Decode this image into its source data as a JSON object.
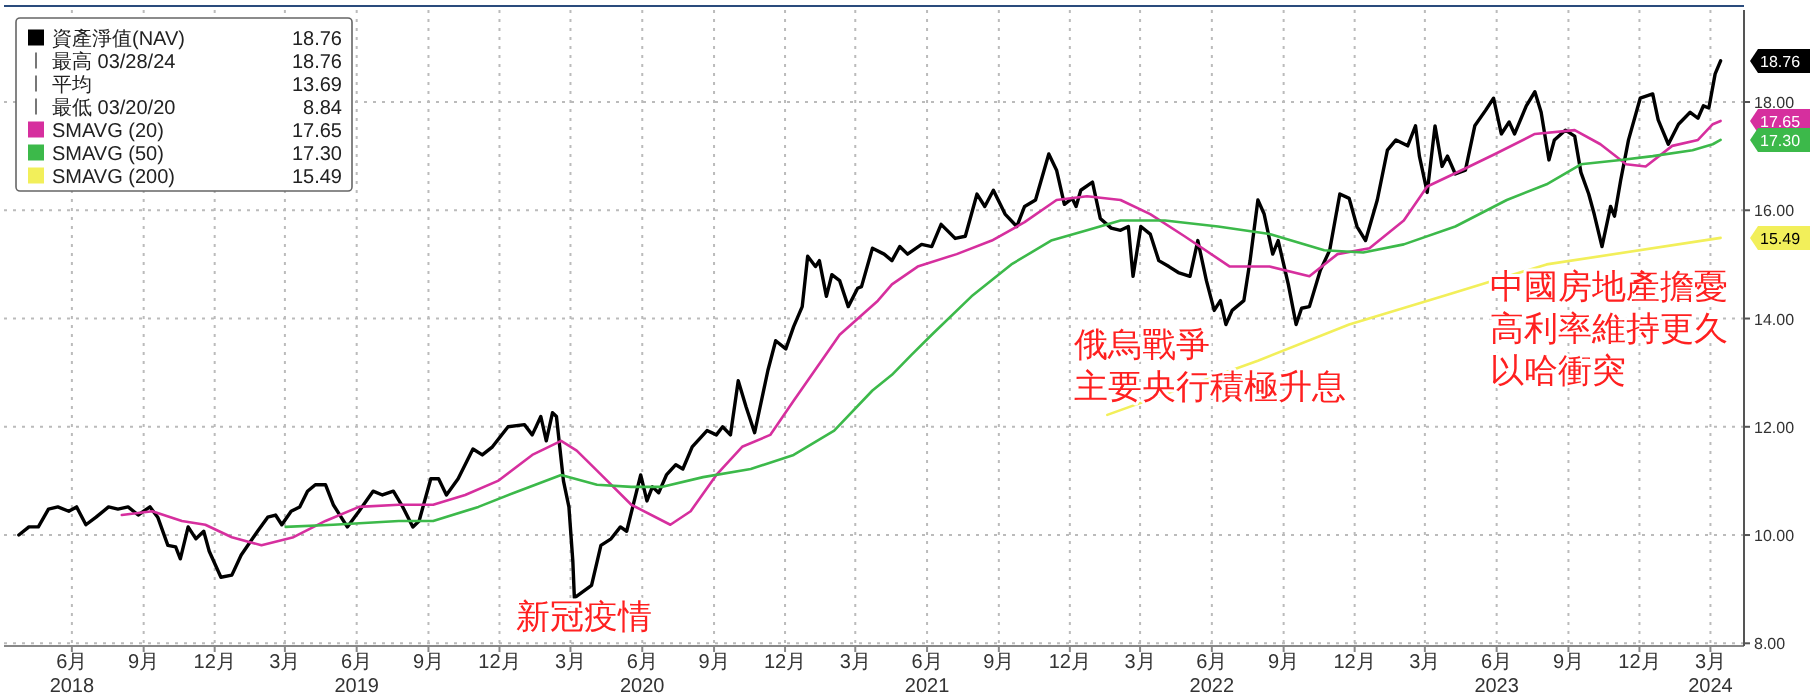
{
  "chart_data": {
    "type": "line",
    "xlim": [
      "2018-03-20",
      "2024-04-27"
    ],
    "ylim": [
      7.95,
      19.7
    ],
    "xticks": [
      {
        "value": "2018-06-15",
        "label": "6月\n2018"
      },
      {
        "value": "2018-09-15",
        "label": "9月"
      },
      {
        "value": "2018-12-15",
        "label": "12月"
      },
      {
        "value": "2019-03-15",
        "label": "3月"
      },
      {
        "value": "2019-06-15",
        "label": "6月\n2019"
      },
      {
        "value": "2019-09-15",
        "label": "9月"
      },
      {
        "value": "2019-12-15",
        "label": "12月"
      },
      {
        "value": "2020-03-15",
        "label": "3月"
      },
      {
        "value": "2020-06-15",
        "label": "6月\n2020"
      },
      {
        "value": "2020-09-15",
        "label": "9月"
      },
      {
        "value": "2020-12-15",
        "label": "12月"
      },
      {
        "value": "2021-03-15",
        "label": "3月"
      },
      {
        "value": "2021-06-15",
        "label": "6月\n2021"
      },
      {
        "value": "2021-09-15",
        "label": "9月"
      },
      {
        "value": "2021-12-15",
        "label": "12月"
      },
      {
        "value": "2022-03-15",
        "label": "3月"
      },
      {
        "value": "2022-06-15",
        "label": "6月\n2022"
      },
      {
        "value": "2022-09-15",
        "label": "9月"
      },
      {
        "value": "2022-12-15",
        "label": "12月"
      },
      {
        "value": "2023-03-15",
        "label": "3月"
      },
      {
        "value": "2023-06-15",
        "label": "6月\n2023"
      },
      {
        "value": "2023-09-15",
        "label": "9月"
      },
      {
        "value": "2023-12-15",
        "label": "12月"
      },
      {
        "value": "2024-03-15",
        "label": "3月\n2024"
      }
    ],
    "yticks": [
      {
        "value": 8,
        "label": "8.00"
      },
      {
        "value": 10,
        "label": "10.00"
      },
      {
        "value": 12,
        "label": "12.00"
      },
      {
        "value": 14,
        "label": "14.00"
      },
      {
        "value": 16,
        "label": "16.00"
      },
      {
        "value": 18,
        "label": "18.00"
      }
    ],
    "grid": true,
    "legend": "top left",
    "line_style": "solid",
    "annotations": [
      "最高 03/28/24  18.76",
      "平均  13.69",
      "最低 03/20/20  8.84",
      "新冠疫情",
      "俄烏戰爭",
      "主要央行積極升息",
      "中國房地產擔憂",
      "高利率維持更久",
      "以哈衝突",
      {
        "text": "18.76",
        "x": "2024-03-28",
        "y": 18.76
      },
      {
        "text": "17.65",
        "x": "2024-03-28",
        "y": 17.65
      },
      {
        "text": "17.30",
        "x": "2024-03-28",
        "y": 17.3
      },
      {
        "text": "15.49",
        "x": "2024-03-28",
        "y": 15.49
      }
    ],
    "series": [
      {
        "name": "資產淨值(NAV)",
        "color": "#000000",
        "x": [
          "2018-04-08",
          "2018-04-21",
          "2018-05-03",
          "2018-05-16",
          "2018-05-28",
          "2018-06-11",
          "2018-06-21",
          "2018-07-03",
          "2018-07-16",
          "2018-08-01",
          "2018-08-13",
          "2018-08-26",
          "2018-09-08",
          "2018-09-23",
          "2018-10-03",
          "2018-10-16",
          "2018-10-26",
          "2018-11-01",
          "2018-11-11",
          "2018-11-21",
          "2018-12-01",
          "2018-12-08",
          "2018-12-23",
          "2019-01-06",
          "2019-01-18",
          "2019-02-08",
          "2019-02-21",
          "2019-03-03",
          "2019-03-11",
          "2019-03-23",
          "2019-04-03",
          "2019-04-13",
          "2019-04-23",
          "2019-05-06",
          "2019-05-16",
          "2019-06-03",
          "2019-06-18",
          "2019-07-06",
          "2019-07-18",
          "2019-08-01",
          "2019-08-13",
          "2019-08-26",
          "2019-09-03",
          "2019-09-18",
          "2019-09-28",
          "2019-10-08",
          "2019-10-23",
          "2019-11-11",
          "2019-11-23",
          "2019-12-06",
          "2019-12-26",
          "2020-01-16",
          "2020-01-26",
          "2020-02-06",
          "2020-02-13",
          "2020-02-21",
          "2020-02-26",
          "2020-03-06",
          "2020-03-13",
          "2020-03-18",
          "2020-03-20",
          "2020-04-11",
          "2020-04-23",
          "2020-05-06",
          "2020-05-18",
          "2020-05-26",
          "2020-06-13",
          "2020-06-21",
          "2020-06-28",
          "2020-07-06",
          "2020-07-16",
          "2020-07-28",
          "2020-08-06",
          "2020-08-18",
          "2020-09-06",
          "2020-09-18",
          "2020-09-26",
          "2020-10-06",
          "2020-10-16",
          "2020-10-26",
          "2020-11-06",
          "2020-11-23",
          "2020-12-03",
          "2020-12-16",
          "2020-12-26",
          "2021-01-06",
          "2021-01-13",
          "2021-01-23",
          "2021-01-28",
          "2021-02-06",
          "2021-02-13",
          "2021-02-23",
          "2021-03-06",
          "2021-03-18",
          "2021-03-23",
          "2021-04-06",
          "2021-04-21",
          "2021-05-01",
          "2021-05-11",
          "2021-05-21",
          "2021-06-08",
          "2021-06-21",
          "2021-07-03",
          "2021-07-21",
          "2021-08-03",
          "2021-08-18",
          "2021-08-28",
          "2021-09-08",
          "2021-09-23",
          "2021-10-08",
          "2021-10-18",
          "2021-11-01",
          "2021-11-18",
          "2021-11-28",
          "2021-12-08",
          "2021-12-18",
          "2021-12-23",
          "2021-12-29",
          "2022-01-13",
          "2022-01-23",
          "2022-02-06",
          "2022-02-18",
          "2022-02-28",
          "2022-03-06",
          "2022-03-16",
          "2022-03-28",
          "2022-04-08",
          "2022-04-21",
          "2022-05-03",
          "2022-05-18",
          "2022-05-28",
          "2022-06-08",
          "2022-06-18",
          "2022-06-26",
          "2022-07-03",
          "2022-07-11",
          "2022-07-26",
          "2022-08-03",
          "2022-08-13",
          "2022-08-21",
          "2022-09-01",
          "2022-09-08",
          "2022-09-21",
          "2022-10-01",
          "2022-10-08",
          "2022-10-18",
          "2022-11-01",
          "2022-11-13",
          "2022-11-26",
          "2022-12-08",
          "2022-12-18",
          "2022-12-29",
          "2023-01-13",
          "2023-01-26",
          "2023-02-06",
          "2023-02-21",
          "2023-03-03",
          "2023-03-08",
          "2023-03-18",
          "2023-03-28",
          "2023-04-06",
          "2023-04-13",
          "2023-04-23",
          "2023-05-06",
          "2023-05-18",
          "2023-06-01",
          "2023-06-11",
          "2023-06-21",
          "2023-07-01",
          "2023-07-08",
          "2023-07-23",
          "2023-08-03",
          "2023-08-11",
          "2023-08-21",
          "2023-08-28",
          "2023-09-11",
          "2023-09-23",
          "2023-10-01",
          "2023-10-11",
          "2023-10-18",
          "2023-10-28",
          "2023-11-08",
          "2023-11-13",
          "2023-11-21",
          "2023-12-01",
          "2023-12-16",
          "2024-01-01",
          "2024-01-08",
          "2024-01-21",
          "2024-02-03",
          "2024-02-18",
          "2024-02-28",
          "2024-03-06",
          "2024-03-13",
          "2024-03-21",
          "2024-03-28"
        ],
        "values": [
          10.0,
          10.15,
          10.15,
          10.48,
          10.52,
          10.44,
          10.52,
          10.19,
          10.33,
          10.52,
          10.48,
          10.52,
          10.37,
          10.52,
          10.33,
          9.81,
          9.78,
          9.56,
          10.15,
          9.93,
          10.07,
          9.7,
          9.22,
          9.26,
          9.63,
          10.07,
          10.33,
          10.37,
          10.19,
          10.44,
          10.52,
          10.81,
          10.93,
          10.93,
          10.56,
          10.15,
          10.44,
          10.81,
          10.74,
          10.81,
          10.52,
          10.15,
          10.26,
          11.04,
          11.04,
          10.74,
          11.04,
          11.59,
          11.48,
          11.63,
          12.0,
          12.04,
          11.85,
          12.19,
          11.74,
          12.26,
          12.19,
          11.0,
          10.52,
          9.52,
          8.84,
          9.07,
          9.81,
          9.93,
          10.15,
          10.07,
          11.11,
          10.63,
          10.89,
          10.78,
          11.11,
          11.3,
          11.22,
          11.63,
          11.93,
          11.85,
          12.0,
          11.85,
          12.85,
          12.37,
          11.89,
          13.04,
          13.59,
          13.44,
          13.85,
          14.22,
          15.15,
          14.96,
          15.07,
          14.41,
          14.81,
          14.7,
          14.22,
          14.56,
          14.59,
          15.3,
          15.19,
          15.07,
          15.33,
          15.19,
          15.37,
          15.33,
          15.74,
          15.48,
          15.52,
          16.3,
          16.07,
          16.37,
          15.93,
          15.7,
          16.07,
          16.19,
          17.04,
          16.74,
          16.11,
          16.22,
          16.07,
          16.37,
          16.52,
          15.85,
          15.67,
          15.63,
          15.7,
          14.78,
          15.7,
          15.56,
          15.07,
          14.96,
          14.85,
          14.78,
          15.44,
          14.7,
          14.15,
          14.33,
          13.89,
          14.15,
          14.33,
          15.07,
          16.19,
          15.93,
          15.19,
          15.44,
          14.63,
          13.89,
          14.19,
          14.22,
          14.89,
          15.26,
          16.3,
          16.22,
          15.7,
          15.44,
          16.19,
          17.11,
          17.3,
          17.19,
          17.56,
          17.0,
          16.33,
          17.56,
          16.81,
          17.0,
          16.67,
          16.74,
          17.56,
          17.85,
          18.07,
          17.41,
          17.63,
          17.41,
          17.93,
          18.19,
          17.81,
          16.93,
          17.3,
          17.48,
          17.37,
          16.7,
          16.3,
          15.93,
          15.33,
          16.07,
          15.89,
          16.56,
          17.3,
          18.07,
          18.15,
          17.67,
          17.22,
          17.59,
          17.81,
          17.7,
          17.93,
          17.89,
          18.52,
          18.76
        ]
      },
      {
        "name": "SMAVG (20)",
        "color": "#d62f9e",
        "x": [
          "2018-08-18",
          "2018-09-26",
          "2018-11-03",
          "2018-12-03",
          "2019-01-06",
          "2019-02-13",
          "2019-03-26",
          "2019-05-06",
          "2019-06-18",
          "2019-08-08",
          "2019-09-21",
          "2019-11-01",
          "2019-12-13",
          "2020-01-26",
          "2020-03-03",
          "2020-03-23",
          "2020-04-18",
          "2020-06-01",
          "2020-07-21",
          "2020-08-16",
          "2020-09-18",
          "2020-10-21",
          "2020-11-26",
          "2020-12-26",
          "2021-02-23",
          "2021-04-13",
          "2021-05-01",
          "2021-06-03",
          "2021-07-23",
          "2021-09-06",
          "2021-10-18",
          "2021-11-28",
          "2022-01-06",
          "2022-02-18",
          "2022-03-28",
          "2022-05-11",
          "2022-07-08",
          "2022-08-28",
          "2022-10-18",
          "2022-11-23",
          "2023-01-03",
          "2023-02-16",
          "2023-03-18",
          "2023-05-01",
          "2023-06-13",
          "2023-08-03",
          "2023-09-23",
          "2023-10-26",
          "2023-11-28",
          "2023-12-23",
          "2024-01-26",
          "2024-02-28",
          "2024-03-18",
          "2024-03-28"
        ],
        "values": [
          10.37,
          10.44,
          10.26,
          10.19,
          9.96,
          9.81,
          9.96,
          10.26,
          10.52,
          10.56,
          10.56,
          10.74,
          11.0,
          11.48,
          11.74,
          11.56,
          11.19,
          10.56,
          10.19,
          10.44,
          11.11,
          11.63,
          11.85,
          12.48,
          13.7,
          14.33,
          14.63,
          14.96,
          15.19,
          15.44,
          15.78,
          16.19,
          16.26,
          16.19,
          15.93,
          15.52,
          14.96,
          14.96,
          14.78,
          15.19,
          15.3,
          15.81,
          16.44,
          16.74,
          17.04,
          17.41,
          17.48,
          17.22,
          16.85,
          16.81,
          17.19,
          17.3,
          17.59,
          17.65
        ]
      },
      {
        "name": "SMAVG (50)",
        "color": "#3cb94a",
        "x": [
          "2019-03-16",
          "2019-05-16",
          "2019-08-08",
          "2019-09-21",
          "2019-11-18",
          "2020-01-08",
          "2020-03-03",
          "2020-04-18",
          "2020-06-01",
          "2020-07-11",
          "2020-09-01",
          "2020-11-01",
          "2020-12-26",
          "2021-02-16",
          "2021-04-06",
          "2021-05-01",
          "2021-05-26",
          "2021-06-21",
          "2021-08-11",
          "2021-10-01",
          "2021-11-21",
          "2022-01-06",
          "2022-02-18",
          "2022-04-16",
          "2022-06-23",
          "2022-08-28",
          "2022-11-06",
          "2022-12-26",
          "2023-02-16",
          "2023-04-23",
          "2023-06-28",
          "2023-08-18",
          "2023-10-01",
          "2023-11-21",
          "2024-01-01",
          "2024-02-21",
          "2024-03-18",
          "2024-03-28"
        ],
        "values": [
          10.15,
          10.19,
          10.26,
          10.26,
          10.52,
          10.81,
          11.11,
          10.93,
          10.89,
          10.89,
          11.07,
          11.22,
          11.48,
          11.93,
          12.67,
          12.96,
          13.33,
          13.7,
          14.41,
          15.0,
          15.44,
          15.63,
          15.81,
          15.81,
          15.7,
          15.56,
          15.26,
          15.22,
          15.37,
          15.7,
          16.19,
          16.48,
          16.85,
          16.93,
          17.0,
          17.11,
          17.22,
          17.3
        ]
      },
      {
        "name": "SMAVG (200)",
        "color": "#f2ef5a",
        "x": [
          "2022-02-01",
          "2022-08-13",
          "2022-12-08",
          "2023-04-13",
          "2023-08-18",
          "2024-03-28"
        ],
        "values": [
          12.22,
          13.22,
          13.89,
          14.44,
          15.0,
          15.49
        ]
      }
    ]
  }
}
